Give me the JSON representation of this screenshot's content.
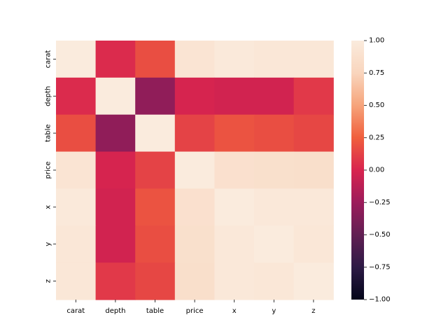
{
  "chart_data": {
    "type": "heatmap",
    "title": "",
    "xlabel": "",
    "ylabel": "",
    "x_categories": [
      "carat",
      "depth",
      "table",
      "price",
      "x",
      "y",
      "z"
    ],
    "y_categories": [
      "carat",
      "depth",
      "table",
      "price",
      "x",
      "y",
      "z"
    ],
    "matrix": [
      [
        1.0,
        0.03,
        0.18,
        0.92,
        0.98,
        0.95,
        0.95
      ],
      [
        0.03,
        1.0,
        -0.3,
        -0.01,
        -0.03,
        -0.03,
        0.09
      ],
      [
        0.18,
        -0.3,
        1.0,
        0.13,
        0.2,
        0.18,
        0.15
      ],
      [
        0.92,
        -0.01,
        0.13,
        1.0,
        0.88,
        0.87,
        0.86
      ],
      [
        0.98,
        -0.03,
        0.2,
        0.88,
        1.0,
        0.97,
        0.97
      ],
      [
        0.95,
        -0.03,
        0.18,
        0.87,
        0.97,
        1.0,
        0.95
      ],
      [
        0.95,
        0.09,
        0.15,
        0.86,
        0.97,
        0.95,
        1.0
      ]
    ],
    "colorbar": {
      "vmin": -1.0,
      "vmax": 1.0,
      "ticks": [
        -1.0,
        -0.75,
        -0.5,
        -0.25,
        0.0,
        0.25,
        0.5,
        0.75,
        1.0
      ],
      "tick_labels": [
        "−1.00",
        "−0.75",
        "−0.50",
        "−0.25",
        "0.00",
        "0.25",
        "0.50",
        "0.75",
        "1.00"
      ],
      "colormap": "rocket",
      "stops": [
        "#03051a",
        "#2d1a45",
        "#611f53",
        "#9c1c5b",
        "#d8244f",
        "#f05f3d",
        "#f6a47b",
        "#f9d5bd",
        "#faebdd"
      ]
    },
    "grid": false,
    "legend": "colorbar-right"
  }
}
